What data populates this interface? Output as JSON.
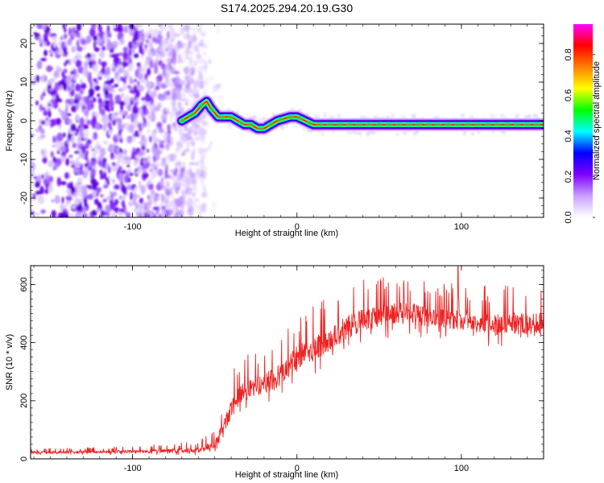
{
  "chart_data": [
    {
      "type": "heatmap",
      "title": "S174.2025.294.20.19.G30",
      "xlabel": "Height of straight line (km)",
      "ylabel": "Frequency (Hz)",
      "xlim": [
        -162,
        150
      ],
      "ylim": [
        -25,
        25
      ],
      "xticks": [
        -100,
        0,
        100
      ],
      "yticks": [
        -20,
        -10,
        0,
        10,
        20
      ],
      "colorbar": {
        "label": "Normalized spectral amplitude",
        "range": [
          0,
          0.95
        ],
        "ticks": [
          "0.0",
          "0.2",
          "0.4",
          "0.6",
          "0.8"
        ],
        "tick_values": [
          0,
          0.2,
          0.4,
          0.6,
          0.8
        ],
        "colors": [
          "#ffffff",
          "#c9a0ff",
          "#7f00ff",
          "#0000ff",
          "#00ffff",
          "#00ff00",
          "#ffff00",
          "#ff8000",
          "#ff0000",
          "#ff00ff"
        ]
      },
      "signal_ridge": {
        "x": [
          -70,
          -66,
          -62,
          -58,
          -55,
          -52,
          -48,
          -44,
          -40,
          -36,
          -32,
          -28,
          -24,
          -20,
          -16,
          -12,
          -8,
          -4,
          0,
          5,
          10,
          20,
          30,
          40,
          50,
          60,
          70,
          80,
          90,
          100,
          110,
          120,
          130,
          140,
          150
        ],
        "y": [
          0,
          1,
          2,
          4,
          5,
          3,
          1,
          1,
          1,
          0,
          -1,
          -1,
          -2,
          -2,
          -1,
          0,
          0.5,
          1,
          1,
          0,
          -1,
          -1,
          -1,
          -1,
          -1,
          -1,
          -1,
          -1,
          -1,
          -1,
          -1,
          -1,
          -1,
          -1,
          -1
        ]
      },
      "noise_region_x": [
        -162,
        -55
      ]
    },
    {
      "type": "line",
      "xlabel": "Height of straight line (km)",
      "ylabel": "SNR (10 * v/v)",
      "xlim": [
        -162,
        150
      ],
      "ylim": [
        0,
        665
      ],
      "xticks": [
        -100,
        0,
        100
      ],
      "yticks": [
        0,
        200,
        400,
        600
      ],
      "color": "#ee2222",
      "baseline": {
        "x": [
          -162,
          -100,
          -60,
          -50,
          -45,
          -40,
          -35,
          -30,
          -25,
          -20,
          -15,
          -10,
          -5,
          0,
          10,
          20,
          30,
          40,
          50,
          60,
          70,
          80,
          90,
          100,
          110,
          120,
          130,
          140,
          150
        ],
        "y": [
          22,
          25,
          30,
          50,
          100,
          170,
          220,
          240,
          250,
          260,
          270,
          290,
          320,
          350,
          380,
          410,
          450,
          480,
          490,
          500,
          500,
          490,
          480,
          480,
          470,
          460,
          470,
          460,
          470
        ]
      },
      "spike_envelope": {
        "x": [
          -162,
          -100,
          -60,
          -50,
          -45,
          -40,
          -35,
          -30,
          -25,
          -20,
          -15,
          -10,
          -5,
          0,
          10,
          20,
          30,
          40,
          50,
          60,
          70,
          80,
          90,
          100,
          110,
          120,
          130,
          140,
          150
        ],
        "y": [
          35,
          45,
          60,
          100,
          200,
          290,
          350,
          370,
          380,
          390,
          410,
          430,
          470,
          500,
          540,
          560,
          600,
          620,
          630,
          640,
          640,
          620,
          610,
          610,
          600,
          600,
          600,
          600,
          600
        ]
      },
      "peak": {
        "x": 98,
        "y": 662
      }
    }
  ]
}
